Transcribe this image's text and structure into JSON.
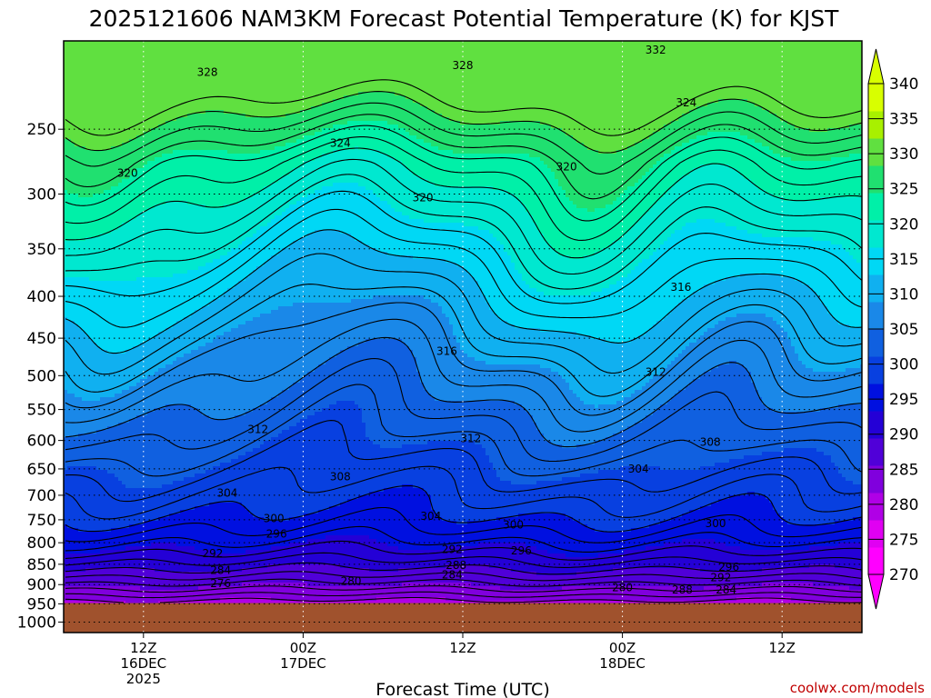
{
  "chart_data": {
    "type": "heatmap",
    "title": "2025121606 NAM3KM Forecast Potential Temperature (K) for KJST",
    "xlabel": "Forecast Time (UTC)",
    "ylabel": "",
    "credit": "coolwx.com/models",
    "x_axis": {
      "range_hours": [
        0,
        60
      ],
      "ticks": [
        {
          "hour": 6,
          "lines": [
            "12Z",
            "16DEC",
            "2025"
          ]
        },
        {
          "hour": 18,
          "lines": [
            "00Z",
            "17DEC"
          ]
        },
        {
          "hour": 30,
          "lines": [
            "12Z"
          ]
        },
        {
          "hour": 42,
          "lines": [
            "00Z",
            "18DEC"
          ]
        },
        {
          "hour": 54,
          "lines": [
            "12Z"
          ]
        }
      ]
    },
    "y_axis": {
      "unit": "hPa",
      "scale": "log",
      "inverted": true,
      "range": [
        1030,
        195
      ],
      "ticks": [
        250,
        300,
        350,
        400,
        450,
        500,
        550,
        600,
        650,
        700,
        750,
        800,
        850,
        900,
        950,
        1000
      ],
      "grid": true
    },
    "surface_pressure_hpa": 948,
    "colorbar": {
      "position": "right",
      "levels": [
        270,
        275,
        280,
        285,
        290,
        295,
        300,
        305,
        310,
        315,
        320,
        325,
        330,
        335,
        340
      ],
      "label_levels": [
        270,
        275,
        280,
        285,
        290,
        295,
        300,
        305,
        310,
        315,
        320,
        325,
        330,
        335,
        340
      ],
      "colors": [
        "#ff00ff",
        "#e000f2",
        "#b000e6",
        "#8000dd",
        "#5000d8",
        "#2400d6",
        "#0010e0",
        "#0840e0",
        "#1060e0",
        "#1a88e8",
        "#10b0f0",
        "#00d8f5",
        "#00e8d0",
        "#00f0a8",
        "#20e070",
        "#60e040",
        "#a8f000",
        "#d8ff00"
      ]
    },
    "contour_interval_k": 2,
    "contour_labels": [
      {
        "value": "332",
        "hour": 44.5,
        "p": 200
      },
      {
        "value": "328",
        "hour": 10.8,
        "p": 213
      },
      {
        "value": "328",
        "hour": 30,
        "p": 209
      },
      {
        "value": "324",
        "hour": 46.8,
        "p": 232
      },
      {
        "value": "324",
        "hour": 20.8,
        "p": 260
      },
      {
        "value": "320",
        "hour": 4.8,
        "p": 283
      },
      {
        "value": "320",
        "hour": 37.8,
        "p": 278
      },
      {
        "value": "320",
        "hour": 27,
        "p": 303
      },
      {
        "value": "316",
        "hour": 46.4,
        "p": 390
      },
      {
        "value": "316",
        "hour": 28.8,
        "p": 467
      },
      {
        "value": "312",
        "hour": 44.5,
        "p": 495
      },
      {
        "value": "312",
        "hour": 14.6,
        "p": 582
      },
      {
        "value": "312",
        "hour": 30.6,
        "p": 597
      },
      {
        "value": "308",
        "hour": 48.6,
        "p": 603
      },
      {
        "value": "308",
        "hour": 20.8,
        "p": 664
      },
      {
        "value": "304",
        "hour": 43.2,
        "p": 650
      },
      {
        "value": "304",
        "hour": 12.3,
        "p": 696
      },
      {
        "value": "304",
        "hour": 27.6,
        "p": 743
      },
      {
        "value": "300",
        "hour": 15.8,
        "p": 747
      },
      {
        "value": "300",
        "hour": 33.8,
        "p": 761
      },
      {
        "value": "300",
        "hour": 49,
        "p": 758
      },
      {
        "value": "296",
        "hour": 16,
        "p": 780
      },
      {
        "value": "292",
        "hour": 29.2,
        "p": 815
      },
      {
        "value": "296",
        "hour": 34.4,
        "p": 818
      },
      {
        "value": "292",
        "hour": 11.2,
        "p": 825
      },
      {
        "value": "296",
        "hour": 50,
        "p": 857
      },
      {
        "value": "288",
        "hour": 29.5,
        "p": 852
      },
      {
        "value": "284",
        "hour": 11.8,
        "p": 864
      },
      {
        "value": "284",
        "hour": 29.2,
        "p": 876
      },
      {
        "value": "292",
        "hour": 49.4,
        "p": 882
      },
      {
        "value": "276",
        "hour": 11.8,
        "p": 897
      },
      {
        "value": "280",
        "hour": 21.6,
        "p": 892
      },
      {
        "value": "280",
        "hour": 42,
        "p": 907
      },
      {
        "value": "288",
        "hour": 46.5,
        "p": 913
      },
      {
        "value": "284",
        "hour": 49.8,
        "p": 913
      }
    ]
  }
}
